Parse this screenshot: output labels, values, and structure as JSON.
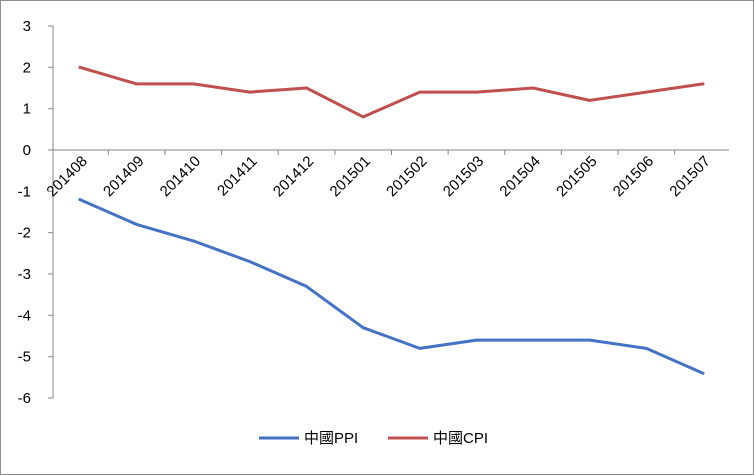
{
  "chart_data": {
    "type": "line",
    "title": "",
    "xlabel": "",
    "ylabel": "",
    "categories": [
      "201408",
      "201409",
      "201410",
      "201411",
      "201412",
      "201501",
      "201502",
      "201503",
      "201504",
      "201505",
      "201506",
      "201507"
    ],
    "ylim": [
      -6,
      3
    ],
    "yticks": [
      3,
      2,
      1,
      0,
      -1,
      -2,
      -3,
      -4,
      -5,
      -6
    ],
    "grid": false,
    "legend_position": "bottom",
    "series": [
      {
        "name": "中國PPI",
        "color": "#4472C4",
        "values": [
          -1.2,
          -1.8,
          -2.2,
          -2.7,
          -3.3,
          -4.3,
          -4.8,
          -4.6,
          -4.6,
          -4.6,
          -4.8,
          -5.4
        ]
      },
      {
        "name": "中國CPI",
        "color": "#C0504D",
        "values": [
          2.0,
          1.6,
          1.6,
          1.4,
          1.5,
          0.8,
          1.4,
          1.4,
          1.5,
          1.2,
          1.4,
          1.6
        ]
      }
    ]
  }
}
